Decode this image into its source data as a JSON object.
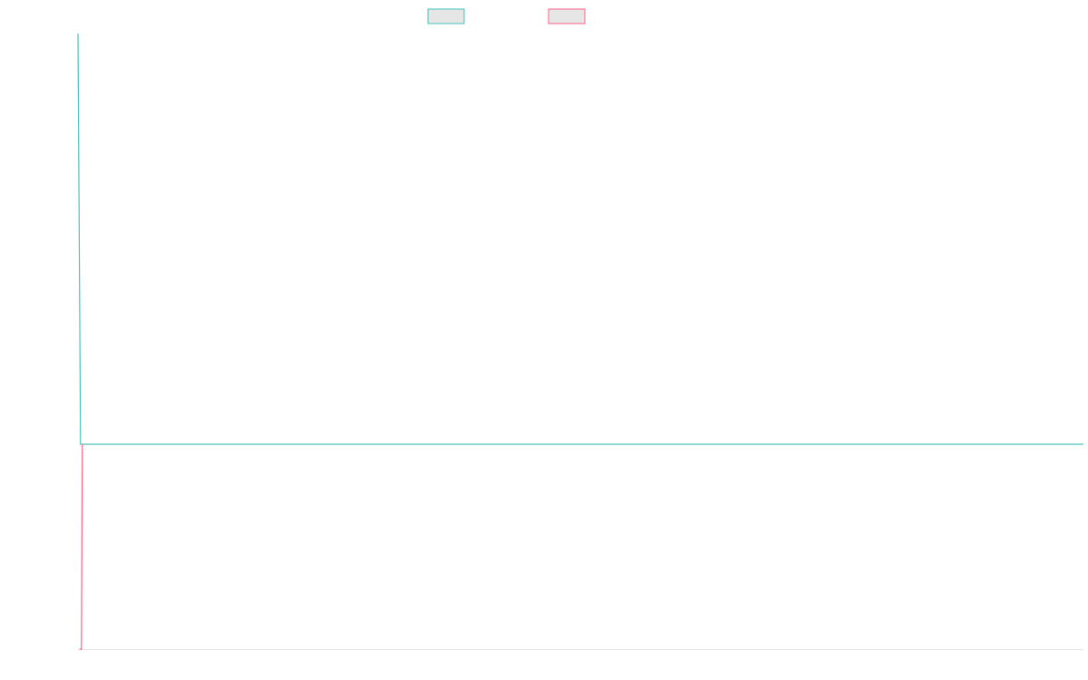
{
  "chart_data": {
    "type": "line",
    "title": "",
    "xlabel": "",
    "ylabel": "",
    "legend_position": "top-center",
    "grid": false,
    "x": [
      0,
      1,
      2,
      400
    ],
    "ylim": [
      0,
      100
    ],
    "series": [
      {
        "color": "#4bc0c0",
        "fill": "#e6e6e6",
        "values": [
          100,
          0,
          0,
          0
        ]
      },
      {
        "color": "#ff6384",
        "fill": "#e6e6e6",
        "values": [
          0,
          0,
          0,
          0
        ]
      }
    ]
  }
}
